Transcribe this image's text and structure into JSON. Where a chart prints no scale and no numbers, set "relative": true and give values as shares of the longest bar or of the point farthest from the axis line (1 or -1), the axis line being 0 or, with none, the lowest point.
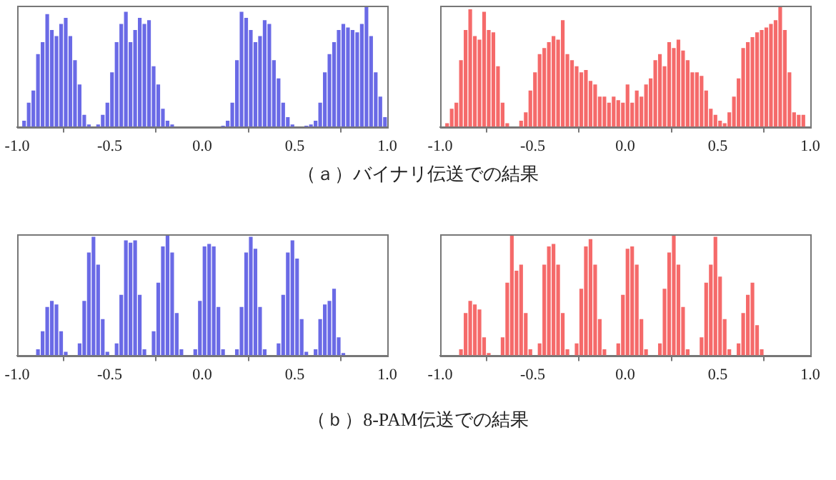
{
  "chart_data": [
    {
      "type": "bar",
      "relative": true,
      "color": "#6a6ae6",
      "xlim": [
        -1,
        1
      ],
      "xticks": [
        {
          "value": -1,
          "label": "-1.0"
        },
        {
          "value": -0.5,
          "label": "-0.5"
        },
        {
          "value": 0,
          "label": "0.0"
        },
        {
          "value": 0.5,
          "label": "0.5"
        },
        {
          "value": 1,
          "label": "1.0"
        }
      ],
      "x": [
        -0.9875,
        -0.9625,
        -0.9375,
        -0.9125,
        -0.8875,
        -0.8625,
        -0.8375,
        -0.8125,
        -0.7875,
        -0.7625,
        -0.7375,
        -0.7125,
        -0.6875,
        -0.6625,
        -0.6375,
        -0.6125,
        -0.5875,
        -0.5625,
        -0.5375,
        -0.5125,
        -0.4875,
        -0.4625,
        -0.4375,
        -0.4125,
        -0.3875,
        -0.3625,
        -0.3375,
        -0.3125,
        -0.2875,
        -0.2625,
        -0.2375,
        -0.2125,
        -0.1875,
        -0.1625,
        -0.1375,
        -0.1125,
        -0.0875,
        -0.0625,
        -0.0375,
        -0.0125,
        0.0125,
        0.0375,
        0.0625,
        0.0875,
        0.1125,
        0.1375,
        0.1625,
        0.1875,
        0.2125,
        0.2375,
        0.2625,
        0.2875,
        0.3125,
        0.3375,
        0.3625,
        0.3875,
        0.4125,
        0.4375,
        0.4625,
        0.4875,
        0.5125,
        0.5375,
        0.5625,
        0.5875,
        0.6125,
        0.6375,
        0.6625,
        0.6875,
        0.7125,
        0.7375,
        0.7625,
        0.7875,
        0.8125,
        0.8375,
        0.8625,
        0.8875,
        0.9125,
        0.9375,
        0.9625,
        0.9875
      ],
      "values": [
        0,
        0.05,
        0.2,
        0.3,
        0.6,
        0.7,
        0.93,
        0.8,
        0.75,
        0.85,
        0.9,
        0.75,
        0.55,
        0.35,
        0.1,
        0.02,
        0,
        0.02,
        0.1,
        0.2,
        0.45,
        0.7,
        0.85,
        0.95,
        0.7,
        0.8,
        0.9,
        0.85,
        0.88,
        0.5,
        0.35,
        0.15,
        0.05,
        0.02,
        0,
        0,
        0,
        0,
        0,
        0,
        0,
        0,
        0,
        0,
        0.01,
        0.05,
        0.2,
        0.55,
        0.95,
        0.9,
        0.8,
        0.7,
        0.75,
        0.88,
        0.85,
        0.55,
        0.4,
        0.2,
        0.08,
        0.02,
        0,
        0,
        0.01,
        0.02,
        0.05,
        0.2,
        0.45,
        0.6,
        0.7,
        0.8,
        0.85,
        0.82,
        0.8,
        0.78,
        0.85,
        1,
        0.75,
        0.45,
        0.25,
        0.08
      ]
    },
    {
      "type": "bar",
      "relative": true,
      "color": "#f56a6a",
      "xlim": [
        -1,
        1
      ],
      "xticks": [
        {
          "value": -1,
          "label": "-1.0"
        },
        {
          "value": -0.5,
          "label": "-0.5"
        },
        {
          "value": 0,
          "label": "0.0"
        },
        {
          "value": 0.5,
          "label": "0.5"
        },
        {
          "value": 1,
          "label": "1.0"
        }
      ],
      "annotations": [
        "（ａ）バイナリ伝送での結果"
      ],
      "x": [
        -0.9875,
        -0.9625,
        -0.9375,
        -0.9125,
        -0.8875,
        -0.8625,
        -0.8375,
        -0.8125,
        -0.7875,
        -0.7625,
        -0.7375,
        -0.7125,
        -0.6875,
        -0.6625,
        -0.6375,
        -0.6125,
        -0.5875,
        -0.5625,
        -0.5375,
        -0.5125,
        -0.4875,
        -0.4625,
        -0.4375,
        -0.4125,
        -0.3875,
        -0.3625,
        -0.3375,
        -0.3125,
        -0.2875,
        -0.2625,
        -0.2375,
        -0.2125,
        -0.1875,
        -0.1625,
        -0.1375,
        -0.1125,
        -0.0875,
        -0.0625,
        -0.0375,
        -0.0125,
        0.0125,
        0.0375,
        0.0625,
        0.0875,
        0.1125,
        0.1375,
        0.1625,
        0.1875,
        0.2125,
        0.2375,
        0.2625,
        0.2875,
        0.3125,
        0.3375,
        0.3625,
        0.3875,
        0.4125,
        0.4375,
        0.4625,
        0.4875,
        0.5125,
        0.5375,
        0.5625,
        0.5875,
        0.6125,
        0.6375,
        0.6625,
        0.6875,
        0.7125,
        0.7375,
        0.7625,
        0.7875,
        0.8125,
        0.8375,
        0.8625,
        0.8875,
        0.9125,
        0.9375,
        0.9625,
        0.9875
      ],
      "values": [
        0,
        0.03,
        0.15,
        0.2,
        0.55,
        0.8,
        0.97,
        0.75,
        0.72,
        0.95,
        0.8,
        0.78,
        0.5,
        0.2,
        0.03,
        0,
        0,
        0.05,
        0.12,
        0.3,
        0.45,
        0.6,
        0.65,
        0.7,
        0.75,
        0.72,
        0.88,
        0.6,
        0.55,
        0.5,
        0.45,
        0.47,
        0.38,
        0.35,
        0.25,
        0.25,
        0.2,
        0.25,
        0.22,
        0.2,
        0.35,
        0.2,
        0.3,
        0.25,
        0.35,
        0.4,
        0.55,
        0.6,
        0.5,
        0.7,
        0.65,
        0.72,
        0.63,
        0.55,
        0.45,
        0.45,
        0.42,
        0.3,
        0.15,
        0.1,
        0.05,
        0.03,
        0.12,
        0.25,
        0.4,
        0.65,
        0.7,
        0.74,
        0.78,
        0.8,
        0.82,
        0.85,
        0.88,
        1,
        0.8,
        0.45,
        0.12,
        0.1,
        0.1,
        0
      ]
    },
    {
      "type": "bar",
      "relative": true,
      "color": "#6a6ae6",
      "xlim": [
        -1,
        1
      ],
      "xticks": [
        {
          "value": -1,
          "label": "-1.0"
        },
        {
          "value": -0.5,
          "label": "-0.5"
        },
        {
          "value": 0,
          "label": "0.0"
        },
        {
          "value": 0.5,
          "label": "0.5"
        },
        {
          "value": 1,
          "label": "1.0"
        }
      ],
      "x": [
        -0.9875,
        -0.9625,
        -0.9375,
        -0.9125,
        -0.8875,
        -0.8625,
        -0.8375,
        -0.8125,
        -0.7875,
        -0.7625,
        -0.7375,
        -0.7125,
        -0.6875,
        -0.6625,
        -0.6375,
        -0.6125,
        -0.5875,
        -0.5625,
        -0.5375,
        -0.5125,
        -0.4875,
        -0.4625,
        -0.4375,
        -0.4125,
        -0.3875,
        -0.3625,
        -0.3375,
        -0.3125,
        -0.2875,
        -0.2625,
        -0.2375,
        -0.2125,
        -0.1875,
        -0.1625,
        -0.1375,
        -0.1125,
        -0.0875,
        -0.0625,
        -0.0375,
        -0.0125,
        0.0125,
        0.0375,
        0.0625,
        0.0875,
        0.1125,
        0.1375,
        0.1625,
        0.1875,
        0.2125,
        0.2375,
        0.2625,
        0.2875,
        0.3125,
        0.3375,
        0.3625,
        0.3875,
        0.4125,
        0.4375,
        0.4625,
        0.4875,
        0.5125,
        0.5375,
        0.5625,
        0.5875,
        0.6125,
        0.6375,
        0.6625,
        0.6875,
        0.7125,
        0.7375,
        0.7625,
        0.7875,
        0.8125,
        0.8375,
        0.8625,
        0.8875,
        0.9125,
        0.9375,
        0.9625,
        0.9875
      ],
      "values": [
        0,
        0,
        0,
        0,
        0.05,
        0.2,
        0.4,
        0.45,
        0.42,
        0.2,
        0.03,
        0,
        0,
        0.1,
        0.45,
        0.85,
        0.98,
        0.75,
        0.3,
        0.03,
        0,
        0.1,
        0.5,
        0.95,
        0.93,
        0.95,
        0.5,
        0.05,
        0,
        0.2,
        0.6,
        0.9,
        1,
        0.85,
        0.35,
        0.05,
        0,
        0,
        0.05,
        0.45,
        0.9,
        0.92,
        0.9,
        0.4,
        0.05,
        0,
        0,
        0.05,
        0.4,
        0.85,
        0.98,
        0.88,
        0.4,
        0.05,
        0,
        0,
        0.1,
        0.5,
        0.85,
        0.95,
        0.8,
        0.3,
        0.03,
        0,
        0.05,
        0.3,
        0.42,
        0.45,
        0.55,
        0.15,
        0.02,
        0,
        0,
        0,
        0,
        0,
        0,
        0,
        0,
        0
      ]
    },
    {
      "type": "bar",
      "relative": true,
      "color": "#f56a6a",
      "xlim": [
        -1,
        1
      ],
      "xticks": [
        {
          "value": -1,
          "label": "-1.0"
        },
        {
          "value": -0.5,
          "label": "-0.5"
        },
        {
          "value": 0,
          "label": "0.0"
        },
        {
          "value": 0.5,
          "label": "0.5"
        },
        {
          "value": 1,
          "label": "1.0"
        }
      ],
      "annotations": [
        "（ｂ）8-PAM伝送での結果"
      ],
      "x": [
        -0.9875,
        -0.9625,
        -0.9375,
        -0.9125,
        -0.8875,
        -0.8625,
        -0.8375,
        -0.8125,
        -0.7875,
        -0.7625,
        -0.7375,
        -0.7125,
        -0.6875,
        -0.6625,
        -0.6375,
        -0.6125,
        -0.5875,
        -0.5625,
        -0.5375,
        -0.5125,
        -0.4875,
        -0.4625,
        -0.4375,
        -0.4125,
        -0.3875,
        -0.3625,
        -0.3375,
        -0.3125,
        -0.2875,
        -0.2625,
        -0.2375,
        -0.2125,
        -0.1875,
        -0.1625,
        -0.1375,
        -0.1125,
        -0.0875,
        -0.0625,
        -0.0375,
        -0.0125,
        0.0125,
        0.0375,
        0.0625,
        0.0875,
        0.1125,
        0.1375,
        0.1625,
        0.1875,
        0.2125,
        0.2375,
        0.2625,
        0.2875,
        0.3125,
        0.3375,
        0.3625,
        0.3875,
        0.4125,
        0.4375,
        0.4625,
        0.4875,
        0.5125,
        0.5375,
        0.5625,
        0.5875,
        0.6125,
        0.6375,
        0.6625,
        0.6875,
        0.7125,
        0.7375,
        0.7625,
        0.7875,
        0.8125,
        0.8375,
        0.8625,
        0.8875,
        0.9125,
        0.9375,
        0.9625,
        0.9875
      ],
      "values": [
        0,
        0,
        0,
        0,
        0.05,
        0.35,
        0.45,
        0.42,
        0.38,
        0.15,
        0.02,
        0,
        0,
        0.15,
        0.6,
        1,
        0.7,
        0.75,
        0.35,
        0.05,
        0,
        0.1,
        0.75,
        0.9,
        0.92,
        0.75,
        0.35,
        0.05,
        0,
        0.1,
        0.55,
        0.9,
        0.96,
        0.75,
        0.3,
        0.05,
        0,
        0,
        0.1,
        0.5,
        0.88,
        0.9,
        0.75,
        0.3,
        0.05,
        0,
        0,
        0.1,
        0.55,
        0.85,
        1,
        0.75,
        0.4,
        0.05,
        0,
        0,
        0.15,
        0.6,
        0.75,
        0.98,
        0.65,
        0.3,
        0.05,
        0,
        0.1,
        0.35,
        0.5,
        0.6,
        0.25,
        0.05,
        0,
        0,
        0,
        0,
        0,
        0,
        0,
        0,
        0,
        0
      ]
    }
  ]
}
